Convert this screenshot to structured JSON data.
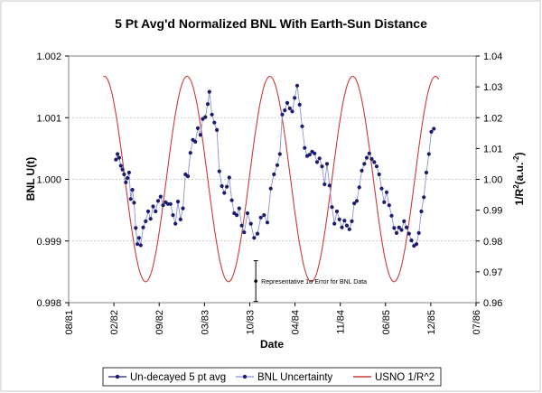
{
  "chart_data": {
    "type": "line",
    "title": "5 Pt Avg'd Normalized BNL With Earth-Sun Distance",
    "xlabel": "Date",
    "ylabel": "BNL U(t)",
    "y2label_prefix": "1/R",
    "y2label_sup": "2",
    "y2label_suffix": "(a.u.",
    "y2label_sup2": "-2",
    "y2label_end": ")",
    "x_ticks": [
      "08/81",
      "02/82",
      "09/82",
      "03/83",
      "10/83",
      "04/84",
      "11/84",
      "06/85",
      "12/85",
      "07/86"
    ],
    "x_range_years": [
      1981.58,
      1986.5
    ],
    "ylim": [
      0.998,
      1.002
    ],
    "y_ticks": [
      "0.998",
      "0.999",
      "1.000",
      "1.001",
      "1.002"
    ],
    "y2lim": [
      0.96,
      1.04
    ],
    "y2_ticks": [
      "0.96",
      "0.97",
      "0.98",
      "0.99",
      "1.00",
      "1.01",
      "1.02",
      "1.03",
      "1.04"
    ],
    "annotation": {
      "text": "Representative 1σ Error for BNL Data",
      "x_year": 1983.84,
      "center": 0.99835,
      "half_error": 0.00033
    },
    "legend": [
      "Un-decayed 5 pt avg",
      "BNL Uncertainty",
      "USNO 1/R^2"
    ],
    "legend_position": "bottom",
    "colors": {
      "data": "#1c1c6e",
      "uncertainty": "#8a94d6",
      "usno": "#cc3b3b"
    },
    "series": [
      {
        "name": "USNO 1/R^2",
        "axis": "right",
        "curve": {
          "x_start": 1982.0,
          "x_end": 1986.05,
          "mean": 1.0001,
          "amplitude": 0.0333,
          "period_years": 1.0,
          "peak_phase_year": 0.01
        }
      },
      {
        "name": "Un-decayed 5 pt avg",
        "axis": "left",
        "x": [
          1982.15,
          1982.17,
          1982.19,
          1982.21,
          1982.23,
          1982.25,
          1982.27,
          1982.29,
          1982.31,
          1982.33,
          1982.35,
          1982.37,
          1982.39,
          1982.41,
          1982.43,
          1982.45,
          1982.48,
          1982.51,
          1982.54,
          1982.57,
          1982.6,
          1982.63,
          1982.66,
          1982.69,
          1982.72,
          1982.75,
          1982.78,
          1982.81,
          1982.84,
          1982.87,
          1982.9,
          1982.93,
          1982.96,
          1982.99,
          1983.02,
          1983.05,
          1983.08,
          1983.11,
          1983.14,
          1983.17,
          1983.2,
          1983.23,
          1983.26,
          1983.28,
          1983.31,
          1983.34,
          1983.37,
          1983.4,
          1983.43,
          1983.46,
          1983.49,
          1983.52,
          1983.55,
          1983.58,
          1983.61,
          1983.64,
          1983.67,
          1983.7,
          1983.74,
          1983.78,
          1983.82,
          1983.86,
          1983.9,
          1983.94,
          1983.98,
          1984.02,
          1984.06,
          1984.1,
          1984.13,
          1984.16,
          1984.19,
          1984.22,
          1984.25,
          1984.28,
          1984.31,
          1984.34,
          1984.37,
          1984.4,
          1984.43,
          1984.46,
          1984.49,
          1984.52,
          1984.55,
          1984.58,
          1984.61,
          1984.64,
          1984.67,
          1984.7,
          1984.73,
          1984.76,
          1984.79,
          1984.82,
          1984.85,
          1984.88,
          1984.91,
          1984.94,
          1984.97,
          1985.0,
          1985.03,
          1985.06,
          1985.09,
          1985.12,
          1985.15,
          1985.18,
          1985.21,
          1985.24,
          1985.27,
          1985.3,
          1985.33,
          1985.36,
          1985.39,
          1985.42,
          1985.45,
          1985.48,
          1985.51,
          1985.54,
          1985.57,
          1985.6,
          1985.63,
          1985.66,
          1985.69,
          1985.72,
          1985.75,
          1985.78,
          1985.81,
          1985.84,
          1985.87,
          1985.9,
          1985.93,
          1985.96,
          1985.99
        ],
        "values": [
          1.00032,
          1.00041,
          1.00035,
          1.00022,
          1.00016,
          1.00008,
          0.99995,
          1.00002,
          1.00011,
          0.99968,
          0.99983,
          0.99962,
          0.99921,
          0.99895,
          0.99905,
          0.99893,
          0.99922,
          0.99932,
          0.99948,
          0.99936,
          0.99956,
          0.99948,
          0.99965,
          0.99972,
          0.99958,
          0.99963,
          0.9996,
          0.9996,
          0.99942,
          0.99928,
          0.99964,
          0.99935,
          0.99953,
          1.00008,
          1.00005,
          1.00043,
          1.00064,
          1.00061,
          1.00083,
          1.00072,
          1.00098,
          1.00101,
          1.00122,
          1.00142,
          1.00105,
          1.00092,
          1.0008,
          1.00013,
          0.99989,
          0.99978,
          0.99988,
          1.00003,
          0.99966,
          0.99945,
          0.99942,
          0.99953,
          0.99925,
          0.99914,
          0.99945,
          0.99928,
          0.99905,
          0.99912,
          0.99938,
          0.99942,
          0.9993,
          0.99985,
          1.00008,
          1.00023,
          1.00041,
          1.00105,
          1.00112,
          1.00124,
          1.00115,
          1.0011,
          1.00132,
          1.00152,
          1.00121,
          1.00086,
          1.00051,
          1.00038,
          1.0004,
          1.00045,
          1.00042,
          1.00028,
          1.00034,
          1.00021,
          0.99992,
          1.00025,
          0.9999,
          0.99955,
          0.99928,
          0.99948,
          0.99935,
          0.99922,
          0.99933,
          0.99925,
          0.99919,
          0.99932,
          0.99961,
          0.99965,
          0.99987,
          1.00014,
          1.00025,
          1.00035,
          1.00042,
          1.00033,
          1.00028,
          1.00021,
          1.00008,
          0.99985,
          0.99963,
          0.99979,
          0.99958,
          0.99941,
          0.99921,
          0.99913,
          0.99922,
          0.99918,
          0.99932,
          0.99922,
          0.99912,
          0.99901,
          0.99892,
          0.99895,
          0.99913,
          0.99948,
          0.99971,
          1.00011,
          1.00041,
          1.00077,
          1.00082
        ]
      }
    ]
  }
}
